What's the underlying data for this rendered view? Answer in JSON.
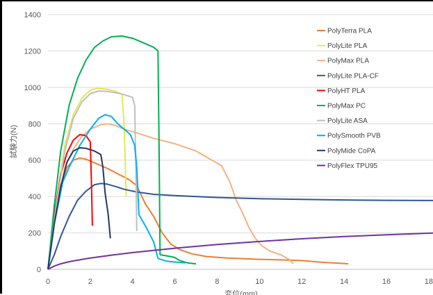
{
  "chart_data": {
    "type": "line",
    "title": "",
    "xlabel": "変位(mm)",
    "ylabel": "試験力(N)",
    "xlim": [
      0,
      18.3
    ],
    "ylim": [
      0,
      1400
    ],
    "xticks": [
      0,
      2,
      4,
      6,
      8,
      10,
      12,
      14,
      16,
      18
    ],
    "yticks": [
      0,
      200,
      400,
      600,
      800,
      1000,
      1200,
      1400
    ],
    "grid": "horizontal",
    "legend_position": "right",
    "series": [
      {
        "name": "PolyTerra PLA",
        "color": "#ed7d31",
        "points": [
          [
            0,
            0
          ],
          [
            0.3,
            280
          ],
          [
            0.6,
            460
          ],
          [
            0.9,
            560
          ],
          [
            1.2,
            600
          ],
          [
            1.5,
            612
          ],
          [
            1.8,
            605
          ],
          [
            2.2,
            585
          ],
          [
            2.8,
            555
          ],
          [
            3.3,
            525
          ],
          [
            3.8,
            495
          ],
          [
            4.2,
            460
          ],
          [
            4.6,
            360
          ],
          [
            5.0,
            290
          ],
          [
            5.4,
            200
          ],
          [
            5.8,
            140
          ],
          [
            6.2,
            110
          ],
          [
            6.8,
            85
          ],
          [
            7.5,
            70
          ],
          [
            8.5,
            62
          ],
          [
            10,
            55
          ],
          [
            11,
            52
          ],
          [
            12,
            48
          ],
          [
            13,
            38
          ],
          [
            14,
            32
          ],
          [
            14.2,
            30
          ]
        ]
      },
      {
        "name": "PolyLite PLA",
        "color": "#e6e657",
        "points": [
          [
            0,
            0
          ],
          [
            0.4,
            380
          ],
          [
            0.8,
            680
          ],
          [
            1.2,
            850
          ],
          [
            1.6,
            940
          ],
          [
            2.0,
            985
          ],
          [
            2.3,
            995
          ],
          [
            2.8,
            990
          ],
          [
            3.2,
            978
          ],
          [
            3.5,
            962
          ],
          [
            3.6,
            800
          ],
          [
            3.65,
            600
          ],
          [
            3.7,
            400
          ]
        ]
      },
      {
        "name": "PolyMax PLA",
        "color": "#f4b183",
        "points": [
          [
            0,
            0
          ],
          [
            0.4,
            330
          ],
          [
            0.8,
            560
          ],
          [
            1.2,
            660
          ],
          [
            1.6,
            730
          ],
          [
            2.0,
            770
          ],
          [
            2.5,
            795
          ],
          [
            2.8,
            800
          ],
          [
            3.2,
            790
          ],
          [
            3.6,
            770
          ],
          [
            4.2,
            750
          ],
          [
            5,
            720
          ],
          [
            6,
            690
          ],
          [
            7,
            650
          ],
          [
            7.6,
            610
          ],
          [
            8.2,
            570
          ],
          [
            8.6,
            480
          ],
          [
            8.9,
            380
          ],
          [
            9.2,
            310
          ],
          [
            9.5,
            230
          ],
          [
            9.8,
            170
          ],
          [
            10.1,
            130
          ],
          [
            10.5,
            100
          ],
          [
            11,
            80
          ],
          [
            11.4,
            55
          ],
          [
            11.6,
            30
          ]
        ]
      },
      {
        "name": "PolyLite PLA-CF",
        "color": "#2f5597",
        "points": [
          [
            0,
            0
          ],
          [
            0.3,
            80
          ],
          [
            0.6,
            180
          ],
          [
            1.0,
            290
          ],
          [
            1.4,
            380
          ],
          [
            1.8,
            430
          ],
          [
            2.2,
            465
          ],
          [
            2.5,
            472
          ],
          [
            2.8,
            468
          ],
          [
            3.2,
            455
          ],
          [
            3.6,
            440
          ],
          [
            4.2,
            425
          ],
          [
            5,
            412
          ],
          [
            6,
            405
          ],
          [
            8,
            395
          ],
          [
            10,
            388
          ],
          [
            12,
            384
          ],
          [
            14,
            381
          ],
          [
            16,
            379
          ],
          [
            18.3,
            378
          ]
        ]
      },
      {
        "name": "PolyHT PLA",
        "color": "#ff0000",
        "points": [
          [
            0,
            0
          ],
          [
            0.3,
            300
          ],
          [
            0.6,
            520
          ],
          [
            0.9,
            640
          ],
          [
            1.2,
            710
          ],
          [
            1.5,
            740
          ],
          [
            1.8,
            735
          ],
          [
            2.0,
            700
          ],
          [
            2.05,
            500
          ],
          [
            2.1,
            240
          ]
        ]
      },
      {
        "name": "PolyMax PC",
        "color": "#00b050",
        "points": [
          [
            0,
            0
          ],
          [
            0.3,
            350
          ],
          [
            0.6,
            650
          ],
          [
            1.0,
            900
          ],
          [
            1.4,
            1050
          ],
          [
            1.8,
            1150
          ],
          [
            2.2,
            1220
          ],
          [
            2.6,
            1255
          ],
          [
            3.0,
            1278
          ],
          [
            3.5,
            1282
          ],
          [
            4.0,
            1270
          ],
          [
            4.5,
            1245
          ],
          [
            5.0,
            1220
          ],
          [
            5.2,
            1200
          ],
          [
            5.25,
            700
          ],
          [
            5.3,
            80
          ],
          [
            5.8,
            70
          ],
          [
            6.0,
            65
          ],
          [
            6.2,
            50
          ],
          [
            6.6,
            35
          ],
          [
            7.0,
            30
          ]
        ]
      },
      {
        "name": "PolyLite ASA",
        "color": "#bfbfbf",
        "points": [
          [
            0,
            0
          ],
          [
            0.4,
            360
          ],
          [
            0.8,
            650
          ],
          [
            1.2,
            830
          ],
          [
            1.6,
            920
          ],
          [
            2.0,
            965
          ],
          [
            2.4,
            980
          ],
          [
            2.8,
            978
          ],
          [
            3.2,
            970
          ],
          [
            3.6,
            960
          ],
          [
            4.0,
            945
          ],
          [
            4.1,
            900
          ],
          [
            4.15,
            600
          ],
          [
            4.2,
            210
          ]
        ]
      },
      {
        "name": "PolySmooth PVB",
        "color": "#00b0f0",
        "points": [
          [
            0,
            0
          ],
          [
            0.3,
            250
          ],
          [
            0.7,
            480
          ],
          [
            1.0,
            560
          ],
          [
            1.5,
            680
          ],
          [
            2.0,
            770
          ],
          [
            2.4,
            830
          ],
          [
            2.7,
            850
          ],
          [
            3.0,
            840
          ],
          [
            3.3,
            800
          ],
          [
            3.6,
            770
          ],
          [
            3.9,
            740
          ],
          [
            4.1,
            680
          ],
          [
            4.2,
            560
          ],
          [
            4.3,
            300
          ],
          [
            4.6,
            240
          ],
          [
            5.0,
            150
          ],
          [
            5.2,
            60
          ],
          [
            5.6,
            45
          ],
          [
            6.0,
            40
          ],
          [
            6.5,
            35
          ]
        ]
      },
      {
        "name": "PolyMide CoPA",
        "color": "#1f3864",
        "points": [
          [
            0,
            0
          ],
          [
            0.3,
            250
          ],
          [
            0.6,
            450
          ],
          [
            0.9,
            590
          ],
          [
            1.2,
            650
          ],
          [
            1.5,
            668
          ],
          [
            1.8,
            665
          ],
          [
            2.2,
            650
          ],
          [
            2.5,
            630
          ],
          [
            2.6,
            560
          ],
          [
            2.7,
            420
          ],
          [
            2.85,
            300
          ],
          [
            2.95,
            170
          ]
        ]
      },
      {
        "name": "PolyFlex TPU95",
        "color": "#7030a0",
        "points": [
          [
            0,
            0
          ],
          [
            0.3,
            18
          ],
          [
            0.6,
            30
          ],
          [
            1,
            42
          ],
          [
            2,
            62
          ],
          [
            3,
            78
          ],
          [
            4,
            92
          ],
          [
            5,
            104
          ],
          [
            6,
            116
          ],
          [
            8,
            136
          ],
          [
            10,
            153
          ],
          [
            12,
            168
          ],
          [
            14,
            180
          ],
          [
            16,
            190
          ],
          [
            18.3,
            200
          ]
        ]
      }
    ]
  }
}
